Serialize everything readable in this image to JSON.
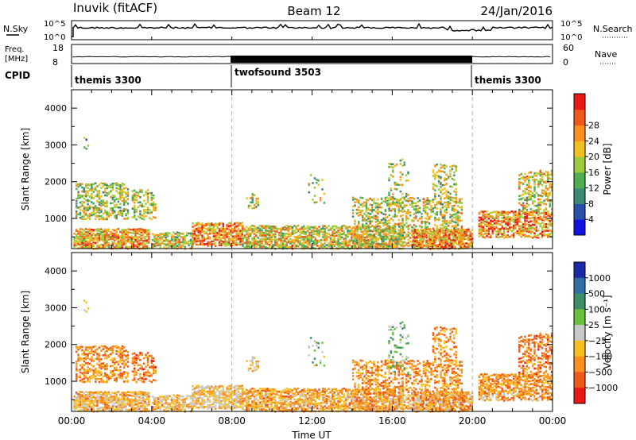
{
  "header": {
    "station": "Inuvik (fitACF)",
    "beam": "Beam 12",
    "date": "24/Jan/2016"
  },
  "panels": {
    "nsky_label": "N.Sky",
    "nsky_ticks": [
      "10^5",
      "10^0"
    ],
    "nsearch_label": "N.Search",
    "nsearch_ticks": [
      "10^5",
      "10^0"
    ],
    "freq_label": "Freq.",
    "freq_unit": "[MHz]",
    "freq_ticks": [
      "18",
      "8"
    ],
    "nave_label": "Nave",
    "nave_ticks": [
      "60",
      "0"
    ],
    "cpid_label": "CPID",
    "cpid_segments": [
      {
        "name": "themis 3300",
        "start": 0,
        "end": 8
      },
      {
        "name": "twofsound 3503",
        "start": 8,
        "end": 20
      },
      {
        "name": "themis 3300",
        "start": 20,
        "end": 24
      }
    ]
  },
  "chart_data": [
    {
      "type": "heatmap",
      "ylabel": "Slant Range [km]",
      "xlabel": "",
      "ylim": [
        180,
        4500
      ],
      "yticks": [
        "1000",
        "2000",
        "3000",
        "4000"
      ],
      "xlim": [
        0,
        24
      ],
      "colorbar": {
        "label": "Power [dB]",
        "ticks": [
          "4",
          "8",
          "12",
          "16",
          "20",
          "24",
          "28"
        ],
        "colors": [
          "#1010e0",
          "#2a4fa8",
          "#3b8a78",
          "#4fae4f",
          "#9ccc3c",
          "#f0c020",
          "#f7901e",
          "#ef5a1a",
          "#e81b14"
        ]
      }
    },
    {
      "type": "heatmap",
      "ylabel": "Slant Range [km]",
      "xlabel": "Time UT",
      "ylim": [
        180,
        4500
      ],
      "yticks": [
        "1000",
        "2000",
        "3000",
        "4000"
      ],
      "xlim": [
        0,
        24
      ],
      "xticks": [
        "00:00",
        "04:00",
        "08:00",
        "12:00",
        "16:00",
        "20:00",
        "00:00"
      ],
      "colorbar": {
        "label": "Velocity [m s⁻¹]",
        "ticks": [
          "1000",
          "500",
          "100",
          "25",
          "−25",
          "−100",
          "−500",
          "−1000"
        ],
        "colors": [
          "#1a2aa8",
          "#2f6fa6",
          "#3d8f6a",
          "#6ac23c",
          "#c8c8c8",
          "#f7c020",
          "#f7901e",
          "#ee5a1a",
          "#e81b14"
        ]
      }
    }
  ],
  "colors": {
    "line": "#000000",
    "grid_dash": "#b0b0b0",
    "ground_scatter": "#c0c0c0"
  }
}
